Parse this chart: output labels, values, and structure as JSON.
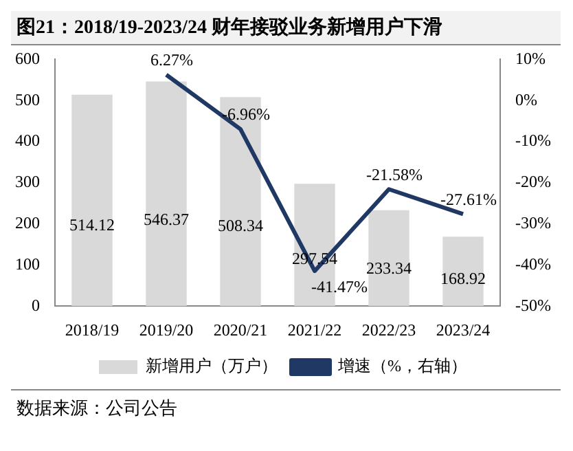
{
  "chart_data": {
    "type": "bar",
    "title": "图21：2018/19-2023/24 财年接驳业务新增用户下滑",
    "categories": [
      "2018/19",
      "2019/20",
      "2020/21",
      "2021/22",
      "2022/23",
      "2023/24"
    ],
    "series": [
      {
        "name": "新增用户（万户）",
        "color": "#d9d9d9",
        "values": [
          514.12,
          546.37,
          508.34,
          297.54,
          233.34,
          168.92
        ],
        "value_labels": [
          "514.12",
          "546.37",
          "508.34",
          "297.54",
          "233.34",
          "168.92"
        ]
      },
      {
        "name": "增速（%，右轴）",
        "type": "line",
        "axis": "y2",
        "color": "#1f3864",
        "values": [
          null,
          6.27,
          -6.96,
          -41.47,
          -21.58,
          -27.61
        ],
        "value_labels": [
          null,
          "6.27%",
          "-6.96%",
          "-41.47%",
          "-21.58%",
          "-27.61%"
        ]
      }
    ],
    "ylim": [
      0,
      600
    ],
    "yticks": [
      0,
      100,
      200,
      300,
      400,
      500,
      600
    ],
    "y2lim": [
      -50,
      10
    ],
    "y2ticks": [
      {
        "value": 10,
        "label": "10%"
      },
      {
        "value": 0,
        "label": "0%"
      },
      {
        "value": -10,
        "label": "-10%"
      },
      {
        "value": -20,
        "label": "-20%"
      },
      {
        "value": -30,
        "label": "-30%"
      },
      {
        "value": -40,
        "label": "-40%"
      },
      {
        "value": -50,
        "label": "-50%"
      }
    ],
    "legend": "bottom",
    "grid": false,
    "marker": "none",
    "annotations": [
      "数据来源：公司公告"
    ]
  }
}
